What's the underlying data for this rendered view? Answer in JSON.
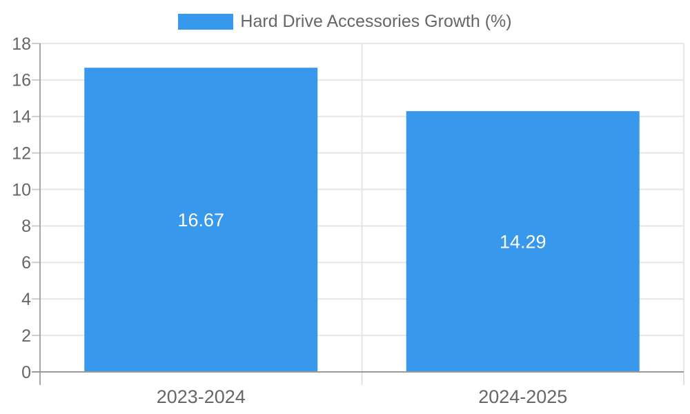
{
  "legend": {
    "label": "Hard Drive Accessories Growth (%)"
  },
  "chart_data": {
    "type": "bar",
    "title": "Hard Drive Accessories Growth (%)",
    "categories": [
      "2023-2024",
      "2024-2025"
    ],
    "values": [
      16.67,
      14.29
    ],
    "bar_labels": [
      "16.67",
      "14.29"
    ],
    "xlabel": "",
    "ylabel": "",
    "ylim": [
      0,
      18
    ],
    "yticks": [
      0,
      2,
      4,
      6,
      8,
      10,
      12,
      14,
      16,
      18
    ],
    "grid": true,
    "legend_position": "top-center",
    "colors": {
      "bar": "#3898EC",
      "grid": "#e6e6e6",
      "x_axis": "#9a9a9a",
      "y_axis": "#a6a6a6",
      "tick": "#cccccc",
      "boundary_tick": "#e0e0e0",
      "label": "#666666",
      "data_label": "#ffffff",
      "background": "#ffffff"
    }
  }
}
